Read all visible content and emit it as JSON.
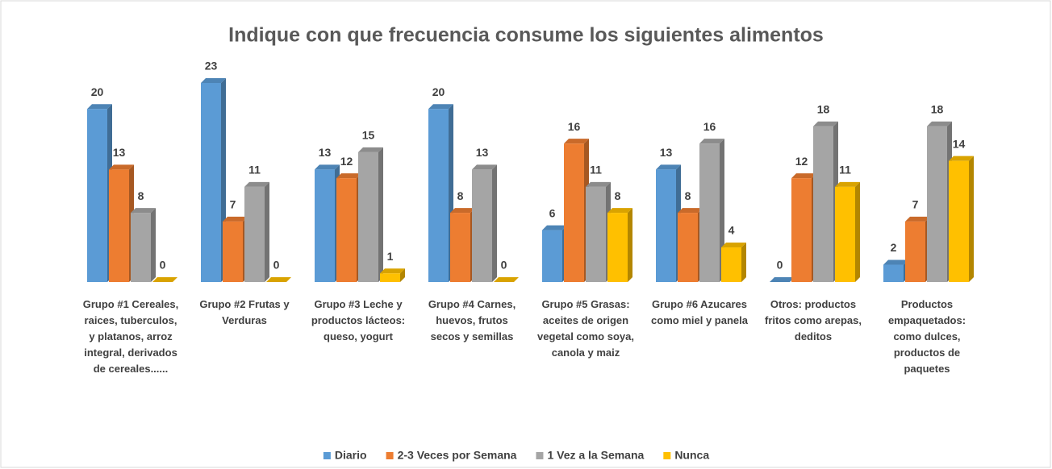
{
  "chart_data": {
    "type": "bar3d",
    "title": "Indique con que frecuencia consume los siguientes alimentos",
    "categories": [
      "Grupo #1 Cereales, raices, tuberculos, y platanos, arroz integral, derivados de cereales......",
      "Grupo #2 Frutas y Verduras",
      "Grupo #3 Leche y productos lácteos: queso, yogurt",
      "Grupo #4 Carnes, huevos, frutos secos y semillas",
      "Grupo #5 Grasas: aceites de origen vegetal como soya, canola y maiz",
      "Grupo #6 Azucares como miel y panela",
      "Otros: productos fritos como arepas, deditos",
      "Productos empaquetados: como dulces, productos de paquetes"
    ],
    "series": [
      {
        "name": "Diario",
        "color": "#5b9bd5",
        "values": [
          20,
          23,
          13,
          20,
          6,
          13,
          0,
          2
        ]
      },
      {
        "name": "2-3 Veces por Semana",
        "color": "#ed7d31",
        "values": [
          13,
          7,
          12,
          8,
          16,
          8,
          12,
          7
        ]
      },
      {
        "name": "1 Vez a la Semana",
        "color": "#a5a5a5",
        "values": [
          8,
          11,
          15,
          13,
          11,
          16,
          18,
          18
        ]
      },
      {
        "name": "Nunca",
        "color": "#ffc000",
        "values": [
          0,
          0,
          1,
          0,
          8,
          4,
          11,
          14
        ]
      }
    ],
    "legend": "bottom"
  }
}
